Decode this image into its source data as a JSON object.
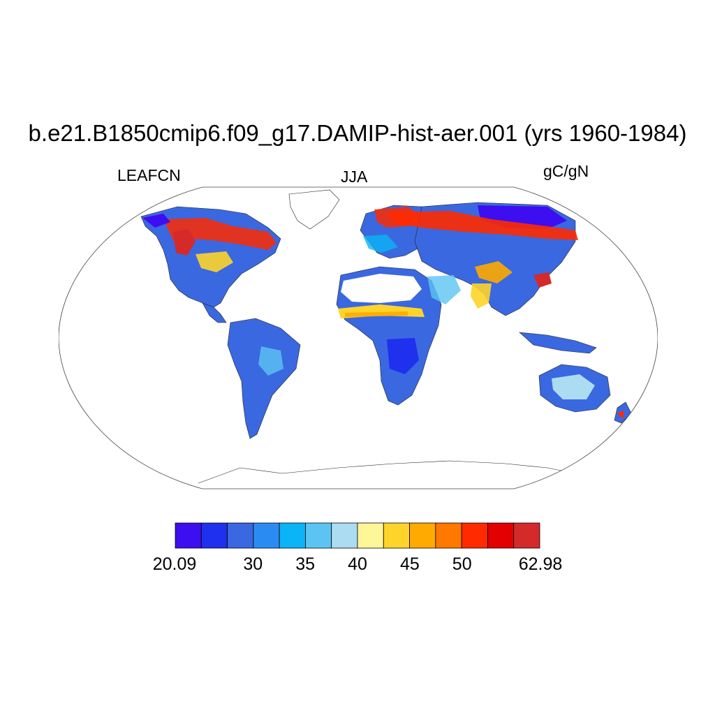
{
  "title": "b.e21.B1850cmip6.f09_g17.DAMIP-hist-aer.001 (yrs 1960-1984)",
  "variable": "LEAFCN",
  "season": "JJA",
  "units": "gC/gN",
  "colorbar": {
    "colors": [
      "#3d0ef0",
      "#1f30ee",
      "#3a68e0",
      "#2a8cf2",
      "#0ab4f6",
      "#5cc4f2",
      "#acdcf2",
      "#fff69a",
      "#ffd42a",
      "#ffaa00",
      "#ff7800",
      "#ff2a00",
      "#e20000",
      "#d42a2a"
    ],
    "labels": [
      "20.09",
      "30",
      "35",
      "40",
      "45",
      "50",
      "62.98"
    ],
    "label_box_index": [
      0,
      3,
      5,
      7,
      9,
      11,
      14
    ]
  },
  "field_colors": {
    "deep_blue": "#3d0ef0",
    "blue": "#1f30ee",
    "mid_blue": "#3a68e0",
    "light_blue": "#5cc4f2",
    "pale_blue": "#acdcf2",
    "yellow": "#ffd42a",
    "orange": "#ffaa00",
    "red": "#ff2a00",
    "dark_red": "#d42a2a"
  }
}
